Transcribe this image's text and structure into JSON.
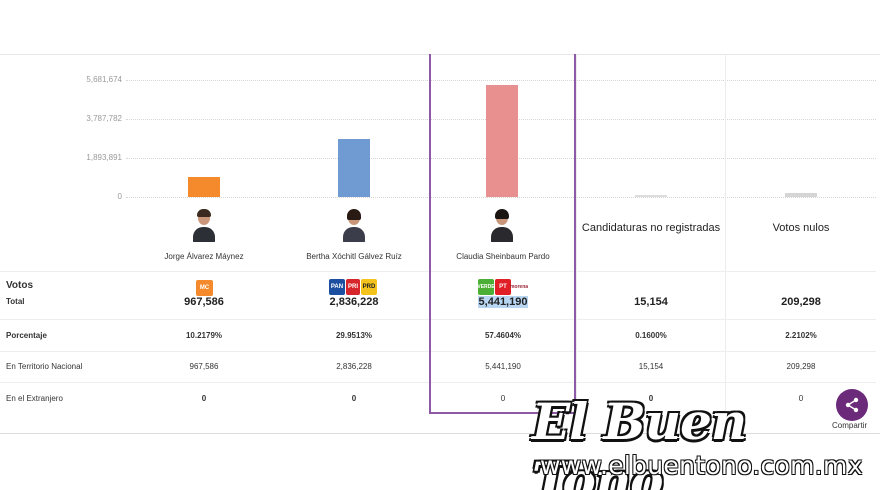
{
  "chart_data": {
    "type": "bar",
    "categories": [
      "Jorge Álvarez Máynez",
      "Bertha Xóchitl Gálvez Ruíz",
      "Claudia Sheinbaum Pardo",
      "Candidaturas no registradas",
      "Votos nulos"
    ],
    "values": [
      967586,
      2836228,
      5441190,
      15154,
      209298
    ],
    "colors": [
      "#f58a2d",
      "#6f9bd2",
      "#e8908f",
      "#dddddd",
      "#d5d5d5"
    ],
    "yticks": [
      "5,681,674",
      "3,787,782",
      "1,893,891",
      "0"
    ],
    "ylim": [
      0,
      5681674
    ]
  },
  "candidates": [
    {
      "name": "Jorge Álvarez Máynez",
      "total": "967,586",
      "percent": "10.2179%",
      "nacional": "967,586",
      "extranjero": "0",
      "parties": [
        {
          "label": "MC",
          "color": "#f58a2d"
        }
      ]
    },
    {
      "name": "Bertha Xóchitl Gálvez Ruíz",
      "total": "2,836,228",
      "percent": "29.9513%",
      "nacional": "2,836,228",
      "extranjero": "0",
      "parties": [
        {
          "label": "PAN",
          "color": "#1c4fa0"
        },
        {
          "label": "PRI",
          "color": "#d7262b"
        },
        {
          "label": "PRD",
          "color": "#f3c21b"
        }
      ]
    },
    {
      "name": "Claudia Sheinbaum Pardo",
      "total": "5,441,190",
      "percent": "57.4604%",
      "nacional": "5,441,190",
      "extranjero": "0",
      "parties": [
        {
          "label": "VERDE",
          "color": "#4caf35"
        },
        {
          "label": "PT",
          "color": "#e01f26"
        },
        {
          "label": "morena",
          "color": "#9b2335"
        }
      ]
    },
    {
      "name": "Candidaturas no registradas",
      "total": "15,154",
      "percent": "0.1600%",
      "nacional": "15,154",
      "extranjero": "0"
    },
    {
      "name": "Votos nulos",
      "total": "209,298",
      "percent": "2.2102%",
      "nacional": "209,298",
      "extranjero": "0"
    }
  ],
  "rows": {
    "votos": "Votos",
    "total": "Total",
    "porcentaje": "Porcentaje",
    "nacional": "En Territorio Nacional",
    "extranjero": "En el Extranjero"
  },
  "watermark": {
    "title": "El Buen Tono",
    "url": "www.elbuentono.com.mx"
  },
  "share": {
    "label": "Compartir"
  }
}
